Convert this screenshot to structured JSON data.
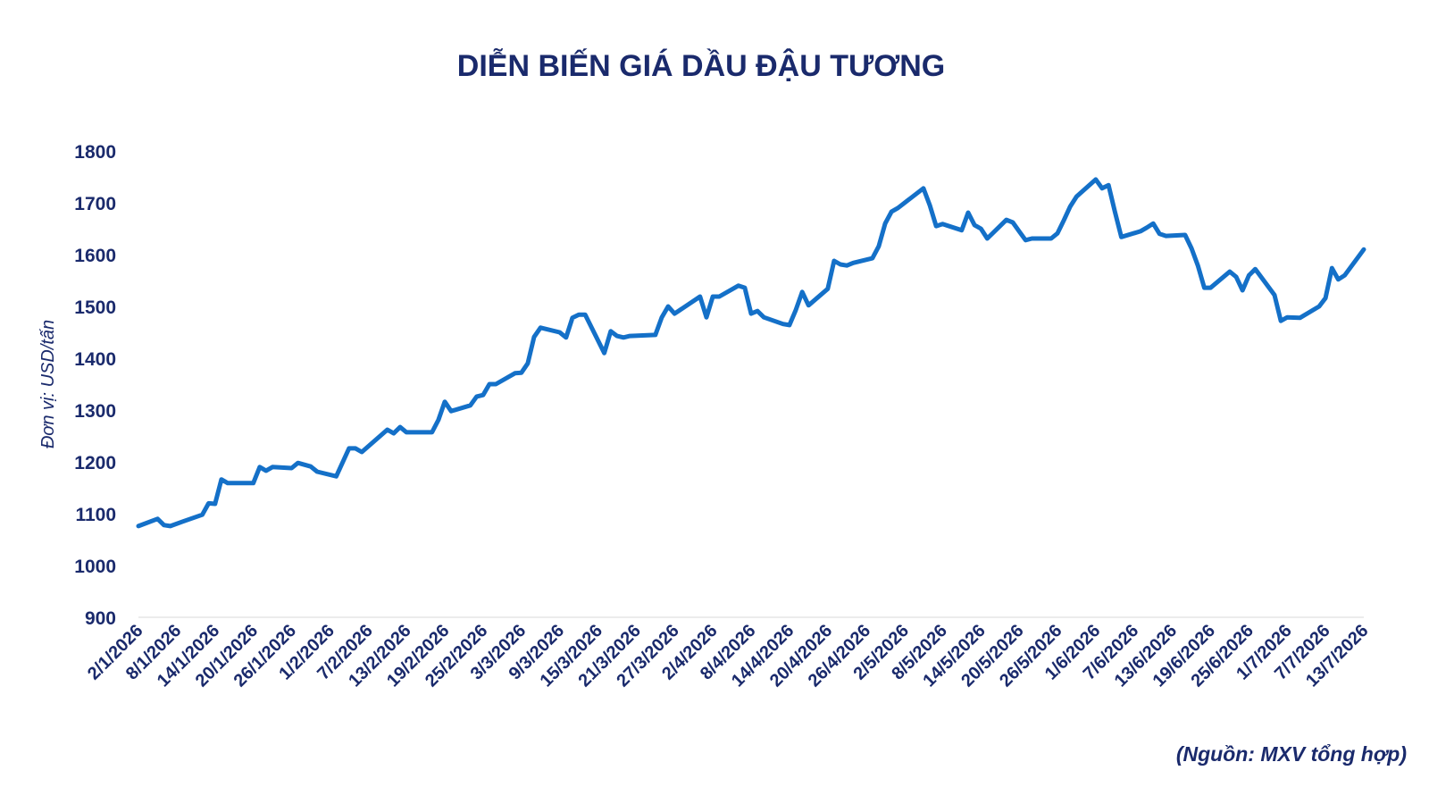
{
  "chart_data": {
    "type": "line",
    "title": "DIỄN BIẾN GIÁ DẦU ĐẬU TƯƠNG",
    "ylabel": "Đơn vị: USD/tấn",
    "source": "(Nguồn: MXV tổng hợp)",
    "ylim": [
      900,
      1800
    ],
    "yticks": [
      900,
      1000,
      1100,
      1200,
      1300,
      1400,
      1500,
      1600,
      1700,
      1800
    ],
    "xlim": [
      "2/1/2026",
      "13/7/2026"
    ],
    "xticks": [
      "2/1/2026",
      "8/1/2026",
      "14/1/2026",
      "20/1/2026",
      "26/1/2026",
      "1/2/2026",
      "7/2/2026",
      "13/2/2026",
      "19/2/2026",
      "25/2/2026",
      "3/3/2026",
      "9/3/2026",
      "15/3/2026",
      "21/3/2026",
      "27/3/2026",
      "2/4/2026",
      "8/4/2026",
      "14/4/2026",
      "20/4/2026",
      "26/4/2026",
      "2/5/2026",
      "8/5/2026",
      "14/5/2026",
      "20/5/2026",
      "26/5/2026",
      "1/6/2026",
      "7/6/2026",
      "13/6/2026",
      "19/6/2026",
      "25/6/2026",
      "1/7/2026",
      "7/7/2026",
      "13/7/2026"
    ],
    "grid": false,
    "series": [
      {
        "name": "Giá dầu đậu tương",
        "color": "#1470c8",
        "x": [
          "2/1/2026",
          "5/1/2026",
          "6/1/2026",
          "7/1/2026",
          "9/1/2026",
          "12/1/2026",
          "13/1/2026",
          "14/1/2026",
          "15/1/2026",
          "16/1/2026",
          "20/1/2026",
          "21/1/2026",
          "22/1/2026",
          "23/1/2026",
          "26/1/2026",
          "27/1/2026",
          "29/1/2026",
          "30/1/2026",
          "2/2/2026",
          "4/2/2026",
          "5/2/2026",
          "6/2/2026",
          "10/2/2026",
          "11/2/2026",
          "12/2/2026",
          "13/2/2026",
          "17/2/2026",
          "18/2/2026",
          "19/2/2026",
          "20/2/2026",
          "23/2/2026",
          "24/2/2026",
          "25/2/2026",
          "26/2/2026",
          "27/2/2026",
          "2/3/2026",
          "3/3/2026",
          "4/3/2026",
          "5/3/2026",
          "6/3/2026",
          "9/3/2026",
          "10/3/2026",
          "11/3/2026",
          "12/3/2026",
          "13/3/2026",
          "16/3/2026",
          "17/3/2026",
          "18/3/2026",
          "19/3/2026",
          "20/3/2026",
          "24/3/2026",
          "25/3/2026",
          "26/3/2026",
          "27/3/2026",
          "31/3/2026",
          "1/4/2026",
          "2/4/2026",
          "3/4/2026",
          "6/4/2026",
          "7/4/2026",
          "8/4/2026",
          "9/4/2026",
          "10/4/2026",
          "13/4/2026",
          "14/4/2026",
          "15/4/2026",
          "16/4/2026",
          "17/4/2026",
          "20/4/2026",
          "21/4/2026",
          "22/4/2026",
          "23/4/2026",
          "24/4/2026",
          "27/4/2026",
          "28/4/2026",
          "29/4/2026",
          "30/4/2026",
          "1/5/2026",
          "5/5/2026",
          "6/5/2026",
          "7/5/2026",
          "8/5/2026",
          "11/5/2026",
          "12/5/2026",
          "13/5/2026",
          "14/5/2026",
          "15/5/2026",
          "18/5/2026",
          "19/5/2026",
          "20/5/2026",
          "21/5/2026",
          "22/5/2026",
          "25/5/2026",
          "26/5/2026",
          "27/5/2026",
          "28/5/2026",
          "29/5/2026",
          "1/6/2026",
          "2/6/2026",
          "3/6/2026",
          "4/6/2026",
          "5/6/2026",
          "8/6/2026",
          "9/6/2026",
          "10/6/2026",
          "11/6/2026",
          "12/6/2026",
          "15/6/2026",
          "16/6/2026",
          "17/6/2026",
          "18/6/2026",
          "19/6/2026",
          "22/6/2026",
          "23/6/2026",
          "24/6/2026",
          "25/6/2026",
          "26/6/2026",
          "29/6/2026",
          "30/6/2026",
          "1/7/2026",
          "3/7/2026",
          "6/7/2026",
          "7/7/2026",
          "8/7/2026",
          "9/7/2026",
          "10/7/2026",
          "13/7/2026"
        ],
        "values": [
          1076,
          1090,
          1078,
          1076,
          1085,
          1098,
          1120,
          1119,
          1166,
          1159,
          1159,
          1190,
          1183,
          1190,
          1188,
          1198,
          1191,
          1181,
          1172,
          1226,
          1226,
          1219,
          1262,
          1255,
          1267,
          1257,
          1257,
          1281,
          1316,
          1298,
          1309,
          1326,
          1329,
          1350,
          1350,
          1371,
          1372,
          1390,
          1441,
          1459,
          1450,
          1440,
          1478,
          1484,
          1484,
          1410,
          1452,
          1443,
          1440,
          1443,
          1445,
          1479,
          1500,
          1486,
          1519,
          1479,
          1519,
          1519,
          1540,
          1536,
          1486,
          1491,
          1479,
          1466,
          1464,
          1493,
          1528,
          1502,
          1534,
          1588,
          1581,
          1579,
          1584,
          1593,
          1616,
          1660,
          1683,
          1690,
          1728,
          1695,
          1655,
          1659,
          1647,
          1681,
          1657,
          1650,
          1631,
          1667,
          1662,
          1645,
          1628,
          1631,
          1631,
          1641,
          1666,
          1693,
          1712,
          1745,
          1728,
          1734,
          1683,
          1634,
          1645,
          1652,
          1660,
          1640,
          1636,
          1638,
          1612,
          1579,
          1536,
          1536,
          1567,
          1557,
          1531,
          1560,
          1572,
          1522,
          1472,
          1479,
          1478,
          1500,
          1516,
          1574,
          1552,
          1560,
          1610
        ]
      }
    ]
  }
}
